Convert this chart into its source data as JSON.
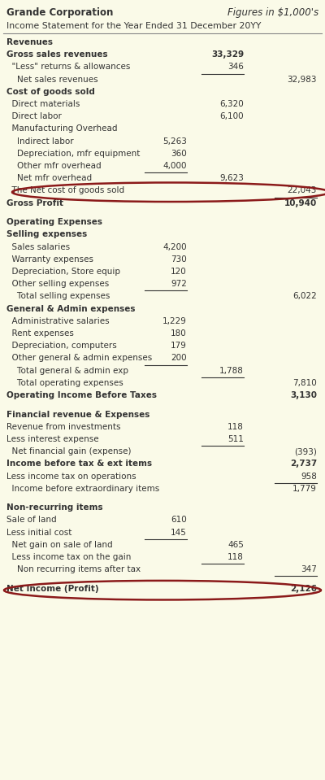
{
  "bg_color": "#FAFAE8",
  "title_left": "Grande Corporation",
  "title_right": "Figures in $1,000's",
  "subtitle": "Income Statement for the Year Ended 31 December 20YY",
  "rows": [
    {
      "label": "Revenues",
      "c1": "",
      "c2": "",
      "c3": "",
      "style": "section_bold",
      "underline_c1": false,
      "underline_c2": false,
      "underline_c3": false
    },
    {
      "label": "Gross sales revenues",
      "c1": "",
      "c2": "33,329",
      "c3": "",
      "style": "bold",
      "underline_c1": false,
      "underline_c2": false,
      "underline_c3": false
    },
    {
      "label": "  \"Less\" returns & allowances",
      "c1": "",
      "c2": "346",
      "c3": "",
      "style": "normal",
      "underline_c1": false,
      "underline_c2": true,
      "underline_c3": false
    },
    {
      "label": "    Net sales revenues",
      "c1": "",
      "c2": "",
      "c3": "32,983",
      "style": "normal",
      "underline_c1": false,
      "underline_c2": false,
      "underline_c3": false
    },
    {
      "label": "Cost of goods sold",
      "c1": "",
      "c2": "",
      "c3": "",
      "style": "bold",
      "underline_c1": false,
      "underline_c2": false,
      "underline_c3": false
    },
    {
      "label": "  Direct materials",
      "c1": "",
      "c2": "6,320",
      "c3": "",
      "style": "normal",
      "underline_c1": false,
      "underline_c2": false,
      "underline_c3": false
    },
    {
      "label": "  Direct labor",
      "c1": "",
      "c2": "6,100",
      "c3": "",
      "style": "normal",
      "underline_c1": false,
      "underline_c2": false,
      "underline_c3": false
    },
    {
      "label": "  Manufacturing Overhead",
      "c1": "",
      "c2": "",
      "c3": "",
      "style": "normal",
      "underline_c1": false,
      "underline_c2": false,
      "underline_c3": false
    },
    {
      "label": "    Indirect labor",
      "c1": "5,263",
      "c2": "",
      "c3": "",
      "style": "normal",
      "underline_c1": false,
      "underline_c2": false,
      "underline_c3": false
    },
    {
      "label": "    Depreciation, mfr equipment",
      "c1": "360",
      "c2": "",
      "c3": "",
      "style": "normal",
      "underline_c1": false,
      "underline_c2": false,
      "underline_c3": false
    },
    {
      "label": "    Other mfr overhead",
      "c1": "4,000",
      "c2": "",
      "c3": "",
      "style": "normal",
      "underline_c1": true,
      "underline_c2": false,
      "underline_c3": false
    },
    {
      "label": "    Net mfr overhead",
      "c1": "",
      "c2": "9,623",
      "c3": "",
      "style": "normal",
      "underline_c1": false,
      "underline_c2": false,
      "underline_c3": false
    },
    {
      "label": "  The Net cost of goods sold",
      "c1": "",
      "c2": "",
      "c3": "22,043",
      "style": "normal",
      "underline_c1": false,
      "underline_c2": false,
      "underline_c3": true,
      "circle": true
    },
    {
      "label": "Gross Profit",
      "c1": "",
      "c2": "",
      "c3": "10,940",
      "style": "bold",
      "underline_c1": false,
      "underline_c2": false,
      "underline_c3": false
    },
    {
      "label": "",
      "c1": "",
      "c2": "",
      "c3": "",
      "style": "spacer",
      "underline_c1": false,
      "underline_c2": false,
      "underline_c3": false
    },
    {
      "label": "Operating Expenses",
      "c1": "",
      "c2": "",
      "c3": "",
      "style": "section_bold",
      "underline_c1": false,
      "underline_c2": false,
      "underline_c3": false
    },
    {
      "label": "Selling expenses",
      "c1": "",
      "c2": "",
      "c3": "",
      "style": "bold",
      "underline_c1": false,
      "underline_c2": false,
      "underline_c3": false
    },
    {
      "label": "  Sales salaries",
      "c1": "4,200",
      "c2": "",
      "c3": "",
      "style": "normal",
      "underline_c1": false,
      "underline_c2": false,
      "underline_c3": false
    },
    {
      "label": "  Warranty expenses",
      "c1": "730",
      "c2": "",
      "c3": "",
      "style": "normal",
      "underline_c1": false,
      "underline_c2": false,
      "underline_c3": false
    },
    {
      "label": "  Depreciation, Store equip",
      "c1": "120",
      "c2": "",
      "c3": "",
      "style": "normal",
      "underline_c1": false,
      "underline_c2": false,
      "underline_c3": false
    },
    {
      "label": "  Other selling expenses",
      "c1": "972",
      "c2": "",
      "c3": "",
      "style": "normal",
      "underline_c1": true,
      "underline_c2": false,
      "underline_c3": false
    },
    {
      "label": "    Total selling expenses",
      "c1": "",
      "c2": "",
      "c3": "6,022",
      "style": "normal",
      "underline_c1": false,
      "underline_c2": false,
      "underline_c3": false
    },
    {
      "label": "General & Admin expenses",
      "c1": "",
      "c2": "",
      "c3": "",
      "style": "bold",
      "underline_c1": false,
      "underline_c2": false,
      "underline_c3": false
    },
    {
      "label": "  Administrative salaries",
      "c1": "1,229",
      "c2": "",
      "c3": "",
      "style": "normal",
      "underline_c1": false,
      "underline_c2": false,
      "underline_c3": false
    },
    {
      "label": "  Rent expenses",
      "c1": "180",
      "c2": "",
      "c3": "",
      "style": "normal",
      "underline_c1": false,
      "underline_c2": false,
      "underline_c3": false
    },
    {
      "label": "  Depreciation, computers",
      "c1": "179",
      "c2": "",
      "c3": "",
      "style": "normal",
      "underline_c1": false,
      "underline_c2": false,
      "underline_c3": false
    },
    {
      "label": "  Other general & admin expenses",
      "c1": "200",
      "c2": "",
      "c3": "",
      "style": "normal",
      "underline_c1": true,
      "underline_c2": false,
      "underline_c3": false
    },
    {
      "label": "    Total general & admin exp",
      "c1": "",
      "c2": "1,788",
      "c3": "",
      "style": "normal",
      "underline_c1": false,
      "underline_c2": true,
      "underline_c3": false
    },
    {
      "label": "    Total operating expenses",
      "c1": "",
      "c2": "",
      "c3": "7,810",
      "style": "normal",
      "underline_c1": false,
      "underline_c2": false,
      "underline_c3": false
    },
    {
      "label": "Operating Income Before Taxes",
      "c1": "",
      "c2": "",
      "c3": "3,130",
      "style": "bold",
      "underline_c1": false,
      "underline_c2": false,
      "underline_c3": false
    },
    {
      "label": "",
      "c1": "",
      "c2": "",
      "c3": "",
      "style": "spacer",
      "underline_c1": false,
      "underline_c2": false,
      "underline_c3": false
    },
    {
      "label": "Financial revenue & Expenses",
      "c1": "",
      "c2": "",
      "c3": "",
      "style": "section_bold",
      "underline_c1": false,
      "underline_c2": false,
      "underline_c3": false
    },
    {
      "label": "Revenue from investments",
      "c1": "",
      "c2": "118",
      "c3": "",
      "style": "normal",
      "underline_c1": false,
      "underline_c2": false,
      "underline_c3": false
    },
    {
      "label": "Less interest expense",
      "c1": "",
      "c2": "511",
      "c3": "",
      "style": "normal",
      "underline_c1": false,
      "underline_c2": true,
      "underline_c3": false
    },
    {
      "label": "  Net financial gain (expense)",
      "c1": "",
      "c2": "",
      "c3": "(393)",
      "style": "normal",
      "underline_c1": false,
      "underline_c2": false,
      "underline_c3": false
    },
    {
      "label": "Income before tax & ext items",
      "c1": "",
      "c2": "",
      "c3": "2,737",
      "style": "bold",
      "underline_c1": false,
      "underline_c2": false,
      "underline_c3": false
    },
    {
      "label": "Less income tax on operations",
      "c1": "",
      "c2": "",
      "c3": "958",
      "style": "normal",
      "underline_c1": false,
      "underline_c2": false,
      "underline_c3": true
    },
    {
      "label": "  Income before extraordinary items",
      "c1": "",
      "c2": "",
      "c3": "1,779",
      "style": "normal",
      "underline_c1": false,
      "underline_c2": false,
      "underline_c3": false
    },
    {
      "label": "",
      "c1": "",
      "c2": "",
      "c3": "",
      "style": "spacer",
      "underline_c1": false,
      "underline_c2": false,
      "underline_c3": false
    },
    {
      "label": "Non-recurring items",
      "c1": "",
      "c2": "",
      "c3": "",
      "style": "section_bold",
      "underline_c1": false,
      "underline_c2": false,
      "underline_c3": false
    },
    {
      "label": "Sale of land",
      "c1": "610",
      "c2": "",
      "c3": "",
      "style": "normal",
      "underline_c1": false,
      "underline_c2": false,
      "underline_c3": false
    },
    {
      "label": "Less initial cost",
      "c1": "145",
      "c2": "",
      "c3": "",
      "style": "normal",
      "underline_c1": true,
      "underline_c2": false,
      "underline_c3": false
    },
    {
      "label": "  Net gain on sale of land",
      "c1": "",
      "c2": "465",
      "c3": "",
      "style": "normal",
      "underline_c1": false,
      "underline_c2": false,
      "underline_c3": false
    },
    {
      "label": "  Less income tax on the gain",
      "c1": "",
      "c2": "118",
      "c3": "",
      "style": "normal",
      "underline_c1": false,
      "underline_c2": true,
      "underline_c3": false
    },
    {
      "label": "    Non recurring items after tax",
      "c1": "",
      "c2": "",
      "c3": "347",
      "style": "normal",
      "underline_c1": false,
      "underline_c2": false,
      "underline_c3": true
    },
    {
      "label": "",
      "c1": "",
      "c2": "",
      "c3": "",
      "style": "spacer",
      "underline_c1": false,
      "underline_c2": false,
      "underline_c3": false
    },
    {
      "label": "Net Income (Profit)",
      "c1": "",
      "c2": "",
      "c3": "2,126",
      "style": "bold",
      "underline_c1": false,
      "underline_c2": false,
      "underline_c3": false,
      "circle": true
    }
  ],
  "text_color": "#333333",
  "ellipse_color": "#8B1A1A",
  "divider_color": "#888888"
}
